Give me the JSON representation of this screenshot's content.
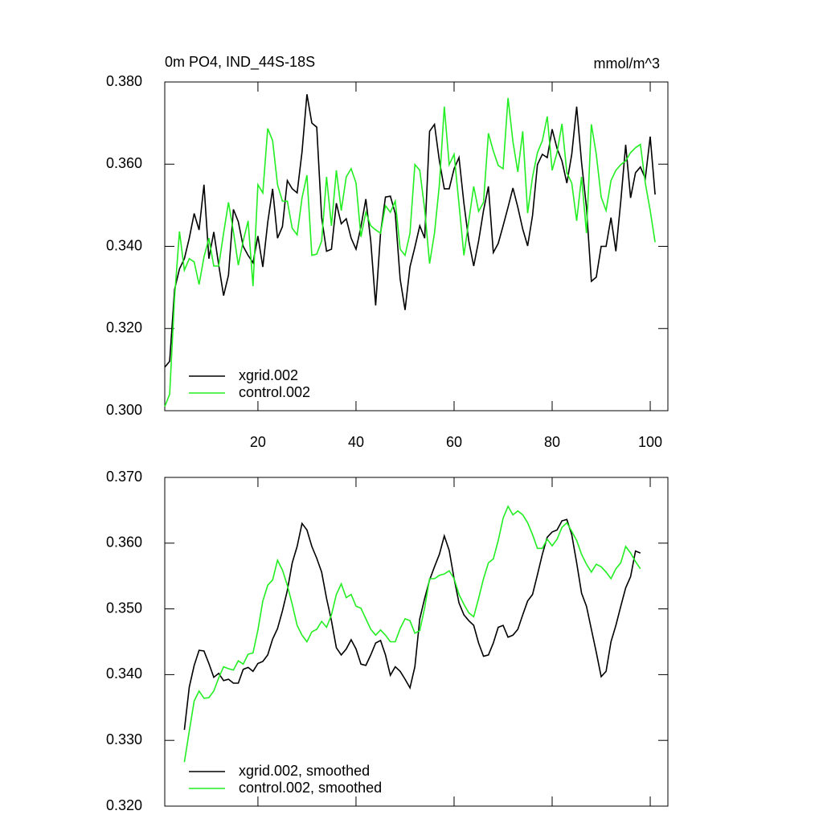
{
  "chart_data": [
    {
      "type": "line",
      "title": "0m PO4, IND_44S-18S",
      "units": "mmol/m^3",
      "x": [
        1,
        2,
        3,
        4,
        5,
        6,
        7,
        8,
        9,
        10,
        11,
        12,
        13,
        14,
        15,
        16,
        17,
        18,
        19,
        20,
        21,
        22,
        23,
        24,
        25,
        26,
        27,
        28,
        29,
        30,
        31,
        32,
        33,
        34,
        35,
        36,
        37,
        38,
        39,
        40,
        41,
        42,
        43,
        44,
        45,
        46,
        47,
        48,
        49,
        50,
        51,
        52,
        53,
        54,
        55,
        56,
        57,
        58,
        59,
        60,
        61,
        62,
        63,
        64,
        65,
        66,
        67,
        68,
        69,
        70,
        71,
        72,
        73,
        74,
        75,
        76,
        77,
        78,
        79,
        80,
        81,
        82,
        83,
        84,
        85,
        86,
        87,
        88,
        89,
        90,
        91,
        92,
        93,
        94,
        95,
        96,
        97,
        98,
        99,
        100,
        101
      ],
      "series": [
        {
          "name": "xgrid.002",
          "color": "#000000",
          "values": [
            0.3106,
            0.312,
            0.3295,
            0.3345,
            0.337,
            0.342,
            0.348,
            0.344,
            0.355,
            0.337,
            0.3435,
            0.3355,
            0.328,
            0.333,
            0.349,
            0.346,
            0.34,
            0.3378,
            0.336,
            0.3425,
            0.335,
            0.3458,
            0.354,
            0.342,
            0.3448,
            0.356,
            0.354,
            0.353,
            0.363,
            0.377,
            0.37,
            0.369,
            0.347,
            0.3388,
            0.3393,
            0.3505,
            0.3455,
            0.3467,
            0.342,
            0.3393,
            0.3448,
            0.3515,
            0.3413,
            0.3256,
            0.3432,
            0.352,
            0.3522,
            0.348,
            0.332,
            0.3245,
            0.335,
            0.3398,
            0.345,
            0.342,
            0.368,
            0.3697,
            0.3608,
            0.354,
            0.354,
            0.3589,
            0.3616,
            0.3505,
            0.3413,
            0.3352,
            0.3413,
            0.3487,
            0.3546,
            0.3385,
            0.3407,
            0.345,
            0.3495,
            0.3542,
            0.3495,
            0.3442,
            0.3401,
            0.3475,
            0.3599,
            0.3624,
            0.3616,
            0.3685,
            0.3638,
            0.3608,
            0.3554,
            0.3624,
            0.374,
            0.3604,
            0.3495,
            0.3315,
            0.3325,
            0.34,
            0.34,
            0.347,
            0.3388,
            0.351,
            0.3647,
            0.3518,
            0.3579,
            0.3593,
            0.3565,
            0.3667,
            0.3526
          ]
        },
        {
          "name": "control.002",
          "color": "#22ee22",
          "values": [
            0.301,
            0.304,
            0.3276,
            0.3436,
            0.3342,
            0.337,
            0.3362,
            0.3307,
            0.3374,
            0.342,
            0.3352,
            0.3352,
            0.3432,
            0.3507,
            0.3436,
            0.3354,
            0.3413,
            0.3462,
            0.3303,
            0.355,
            0.353,
            0.3687,
            0.3657,
            0.355,
            0.351,
            0.351,
            0.3444,
            0.3428,
            0.3518,
            0.3573,
            0.3378,
            0.3381,
            0.3413,
            0.3569,
            0.345,
            0.3585,
            0.3487,
            0.3569,
            0.3589,
            0.3554,
            0.3423,
            0.3483,
            0.345,
            0.344,
            0.3432,
            0.3499,
            0.3483,
            0.351,
            0.3393,
            0.3378,
            0.3432,
            0.3599,
            0.3585,
            0.349,
            0.3358,
            0.3432,
            0.355,
            0.374,
            0.3599,
            0.3624,
            0.3503,
            0.3378,
            0.3462,
            0.3546,
            0.3485,
            0.3507,
            0.3675,
            0.3632,
            0.3597,
            0.3589,
            0.3761,
            0.3655,
            0.3581,
            0.368,
            0.3481,
            0.3569,
            0.3628,
            0.3657,
            0.3716,
            0.3585,
            0.3628,
            0.3698,
            0.3579,
            0.3554,
            0.3462,
            0.3569,
            0.3432,
            0.3697,
            0.3624,
            0.352,
            0.3487,
            0.356,
            0.3585,
            0.3599,
            0.3608,
            0.3628,
            0.364,
            0.3648,
            0.3554,
            0.3487,
            0.341
          ]
        }
      ],
      "xlim": [
        1,
        103.6
      ],
      "xticks": [
        20,
        40,
        60,
        80,
        100
      ],
      "ylim": [
        0.3,
        0.38
      ],
      "yticks": [
        {
          "value": 0.3,
          "label": "0.300"
        },
        {
          "value": 0.32,
          "label": "0.320"
        },
        {
          "value": 0.34,
          "label": "0.340"
        },
        {
          "value": 0.36,
          "label": "0.360"
        },
        {
          "value": 0.38,
          "label": "0.380"
        }
      ],
      "legend": "lower left"
    },
    {
      "type": "line",
      "x": [
        5,
        6,
        7,
        8,
        9,
        10,
        11,
        12,
        13,
        14,
        15,
        16,
        17,
        18,
        19,
        20,
        21,
        22,
        23,
        24,
        25,
        26,
        27,
        28,
        29,
        30,
        31,
        32,
        33,
        34,
        35,
        36,
        37,
        38,
        39,
        40,
        41,
        42,
        43,
        44,
        45,
        46,
        47,
        48,
        49,
        50,
        51,
        52,
        53,
        54,
        55,
        56,
        57,
        58,
        59,
        60,
        61,
        62,
        63,
        64,
        65,
        66,
        67,
        68,
        69,
        70,
        71,
        72,
        73,
        74,
        75,
        76,
        77,
        78,
        79,
        80,
        81,
        82,
        83,
        84,
        85,
        86,
        87,
        88,
        89,
        90,
        91,
        92,
        93,
        94,
        95,
        96,
        97,
        98
      ],
      "series": [
        {
          "name": "xgrid.002, smoothed",
          "color": "#000000",
          "values": [
            0.3316,
            0.3381,
            0.3414,
            0.3437,
            0.3436,
            0.3417,
            0.3396,
            0.3402,
            0.3391,
            0.3393,
            0.3387,
            0.3387,
            0.3408,
            0.3411,
            0.3405,
            0.3417,
            0.342,
            0.343,
            0.3454,
            0.347,
            0.3497,
            0.3528,
            0.357,
            0.3595,
            0.363,
            0.362,
            0.3595,
            0.3577,
            0.3556,
            0.3516,
            0.3482,
            0.3441,
            0.343,
            0.3439,
            0.3453,
            0.3439,
            0.3416,
            0.3414,
            0.343,
            0.3448,
            0.3452,
            0.343,
            0.3399,
            0.3412,
            0.3405,
            0.3393,
            0.338,
            0.3412,
            0.3485,
            0.3516,
            0.3544,
            0.3564,
            0.3583,
            0.3611,
            0.3589,
            0.3546,
            0.3509,
            0.3491,
            0.3482,
            0.3475,
            0.3448,
            0.3428,
            0.343,
            0.3448,
            0.3472,
            0.3475,
            0.3457,
            0.346,
            0.3469,
            0.3491,
            0.3512,
            0.3522,
            0.3552,
            0.3583,
            0.3609,
            0.3617,
            0.362,
            0.3634,
            0.3636,
            0.3613,
            0.357,
            0.3524,
            0.3504,
            0.3469,
            0.3434,
            0.3397,
            0.3405,
            0.345,
            0.3475,
            0.3504,
            0.3532,
            0.3549,
            0.3588,
            0.3585
          ]
        },
        {
          "name": "control.002, smoothed",
          "color": "#22ee22",
          "values": [
            0.3267,
            0.3314,
            0.336,
            0.3375,
            0.3364,
            0.3365,
            0.3375,
            0.3395,
            0.3412,
            0.3409,
            0.3407,
            0.3421,
            0.3416,
            0.3431,
            0.3433,
            0.3468,
            0.3512,
            0.3536,
            0.3544,
            0.3574,
            0.3559,
            0.3536,
            0.3507,
            0.3475,
            0.346,
            0.345,
            0.3465,
            0.3469,
            0.3481,
            0.3472,
            0.3491,
            0.3522,
            0.3538,
            0.3517,
            0.3522,
            0.3504,
            0.3501,
            0.3485,
            0.3469,
            0.346,
            0.3468,
            0.346,
            0.345,
            0.345,
            0.347,
            0.3485,
            0.3482,
            0.3463,
            0.3467,
            0.3502,
            0.3546,
            0.3546,
            0.3551,
            0.3553,
            0.3558,
            0.3546,
            0.3522,
            0.3507,
            0.3494,
            0.3488,
            0.3516,
            0.3546,
            0.357,
            0.3576,
            0.3604,
            0.3638,
            0.3656,
            0.3643,
            0.3649,
            0.3643,
            0.3631,
            0.3613,
            0.3592,
            0.3592,
            0.3606,
            0.3596,
            0.3606,
            0.3624,
            0.3631,
            0.3618,
            0.3604,
            0.3583,
            0.3568,
            0.3556,
            0.3568,
            0.3564,
            0.3556,
            0.3546,
            0.3561,
            0.357,
            0.3595,
            0.3585,
            0.3572,
            0.3561
          ]
        }
      ],
      "xlim": [
        1,
        103.6
      ],
      "xticks": [
        20,
        40,
        60,
        80,
        100
      ],
      "ylim": [
        0.32,
        0.37
      ],
      "yticks": [
        {
          "value": 0.32,
          "label": "0.320"
        },
        {
          "value": 0.33,
          "label": "0.330"
        },
        {
          "value": 0.34,
          "label": "0.340"
        },
        {
          "value": 0.35,
          "label": "0.350"
        },
        {
          "value": 0.36,
          "label": "0.360"
        },
        {
          "value": 0.37,
          "label": "0.370"
        }
      ],
      "legend": "lower left"
    }
  ]
}
